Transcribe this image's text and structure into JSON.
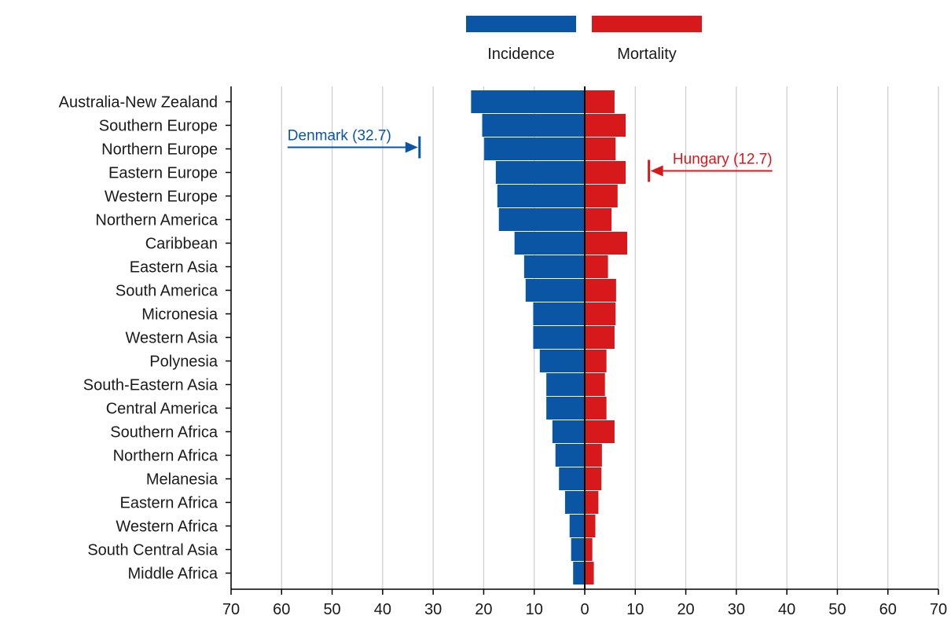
{
  "chart_data": {
    "type": "bar",
    "orientation": "horizontal-diverging",
    "title": "",
    "xlabel": "",
    "ylabel": "",
    "xlim": [
      -70,
      70
    ],
    "x_ticks": [
      -70,
      -60,
      -50,
      -40,
      -30,
      -20,
      -10,
      0,
      10,
      20,
      30,
      40,
      50,
      60,
      70
    ],
    "x_tick_labels": [
      "70",
      "60",
      "50",
      "40",
      "30",
      "20",
      "10",
      "0",
      "10",
      "20",
      "30",
      "40",
      "50",
      "60",
      "70"
    ],
    "grid": "vertical",
    "legend_position": "top-center",
    "categories": [
      "Australia-New Zealand",
      "Southern Europe",
      "Northern Europe",
      "Eastern Europe",
      "Western Europe",
      "Northern America",
      "Caribbean",
      "Eastern Asia",
      "South America",
      "Micronesia",
      "Western Asia",
      "Polynesia",
      "South-Eastern Asia",
      "Central America",
      "Southern Africa",
      "Northern Africa",
      "Melanesia",
      "Eastern Africa",
      "Western Africa",
      "South Central Asia",
      "Middle Africa"
    ],
    "series": [
      {
        "name": "Incidence",
        "color": "#0a55a4",
        "side": "left",
        "values": [
          22.5,
          20.3,
          19.9,
          17.6,
          17.3,
          17.0,
          13.9,
          12.0,
          11.7,
          10.2,
          10.2,
          8.9,
          7.6,
          7.6,
          6.4,
          5.8,
          5.1,
          3.9,
          3.0,
          2.7,
          2.3
        ]
      },
      {
        "name": "Mortality",
        "color": "#d7191c",
        "side": "right",
        "values": [
          5.9,
          8.1,
          6.1,
          8.1,
          6.5,
          5.3,
          8.4,
          4.6,
          6.2,
          6.1,
          5.9,
          4.3,
          4.0,
          4.3,
          5.9,
          3.4,
          3.3,
          2.7,
          2.1,
          1.5,
          1.8
        ]
      }
    ],
    "annotations": [
      {
        "label": "Denmark (32.7)",
        "series": "Incidence",
        "value": 32.7,
        "row": "Northern Europe",
        "color": "#0a55a4"
      },
      {
        "label": "Hungary (12.7)",
        "series": "Mortality",
        "value": 12.7,
        "row": "Eastern Europe",
        "color": "#d7191c"
      }
    ]
  }
}
